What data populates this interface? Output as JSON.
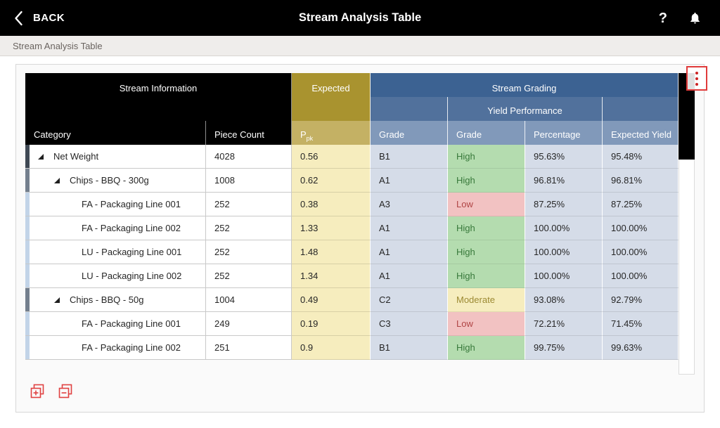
{
  "topbar": {
    "back_label": "BACK",
    "title": "Stream Analysis Table",
    "help_label": "?"
  },
  "breadcrumb": {
    "label": "Stream Analysis Table"
  },
  "icons": {
    "back": "chevron-left-icon",
    "help": "question-mark-icon",
    "notifications": "bell-icon",
    "more_options": "kebab-menu-icon",
    "expand_all": "stacked-squares-plus-icon",
    "collapse_all": "stacked-squares-minus-icon",
    "tree_expanded": "lower-right-triangle-icon"
  },
  "colors": {
    "accent_red": "#e03b3b",
    "header_black": "#000000",
    "expected_gold": "#a9932f",
    "expected_gold_light": "#c4b164",
    "ppk_cell_yellow": "#f6edbe",
    "grading_blue_dark": "#3c6292",
    "grading_blue_medium": "#51719c",
    "grading_blue_light": "#8199ba",
    "cell_blue": "#d5dce8",
    "high_green_bg": "#b4dcaf",
    "high_green_text": "#38793b",
    "low_red_bg": "#f2c2c2",
    "low_red_text": "#b04545",
    "moderate_yellow_bg": "#f6edbe",
    "moderate_text": "#9c8a33"
  },
  "table": {
    "groups": {
      "stream_information": "Stream Information",
      "expected": "Expected",
      "stream_grading": "Stream Grading",
      "yield_performance": "Yield Performance"
    },
    "columns": {
      "category": "Category",
      "piece_count": "Piece Count",
      "ppk_main": "P",
      "ppk_sub": "pk",
      "grade": "Grade",
      "yield_grade": "Grade",
      "percentage": "Percentage",
      "expected_yield": "Expected Yield"
    },
    "rows": [
      {
        "level": 0,
        "expandable": true,
        "category": "Net Weight",
        "piece_count": "4028",
        "ppk": "0.56",
        "grade": "B1",
        "yield_grade": "High",
        "yield_class": "high",
        "percentage": "95.63%",
        "expected_yield": "95.48%"
      },
      {
        "level": 1,
        "expandable": true,
        "category": "Chips - BBQ - 300g",
        "piece_count": "1008",
        "ppk": "0.62",
        "grade": "A1",
        "yield_grade": "High",
        "yield_class": "high",
        "percentage": "96.81%",
        "expected_yield": "96.81%"
      },
      {
        "level": 2,
        "expandable": false,
        "category": "FA - Packaging Line 001",
        "piece_count": "252",
        "ppk": "0.38",
        "grade": "A3",
        "yield_grade": "Low",
        "yield_class": "low",
        "percentage": "87.25%",
        "expected_yield": "87.25%"
      },
      {
        "level": 2,
        "expandable": false,
        "category": "FA - Packaging Line 002",
        "piece_count": "252",
        "ppk": "1.33",
        "grade": "A1",
        "yield_grade": "High",
        "yield_class": "high",
        "percentage": "100.00%",
        "expected_yield": "100.00%"
      },
      {
        "level": 2,
        "expandable": false,
        "category": "LU - Packaging Line 001",
        "piece_count": "252",
        "ppk": "1.48",
        "grade": "A1",
        "yield_grade": "High",
        "yield_class": "high",
        "percentage": "100.00%",
        "expected_yield": "100.00%"
      },
      {
        "level": 2,
        "expandable": false,
        "category": "LU - Packaging Line 002",
        "piece_count": "252",
        "ppk": "1.34",
        "grade": "A1",
        "yield_grade": "High",
        "yield_class": "high",
        "percentage": "100.00%",
        "expected_yield": "100.00%"
      },
      {
        "level": 1,
        "expandable": true,
        "category": "Chips - BBQ - 50g",
        "piece_count": "1004",
        "ppk": "0.49",
        "grade": "C2",
        "yield_grade": "Moderate",
        "yield_class": "moderate",
        "percentage": "93.08%",
        "expected_yield": "92.79%"
      },
      {
        "level": 2,
        "expandable": false,
        "category": "FA - Packaging Line 001",
        "piece_count": "249",
        "ppk": "0.19",
        "grade": "C3",
        "yield_grade": "Low",
        "yield_class": "low",
        "percentage": "72.21%",
        "expected_yield": "71.45%"
      },
      {
        "level": 2,
        "expandable": false,
        "category": "FA - Packaging Line 002",
        "piece_count": "251",
        "ppk": "0.9",
        "grade": "B1",
        "yield_grade": "High",
        "yield_class": "high",
        "percentage": "99.75%",
        "expected_yield": "99.63%"
      }
    ]
  }
}
